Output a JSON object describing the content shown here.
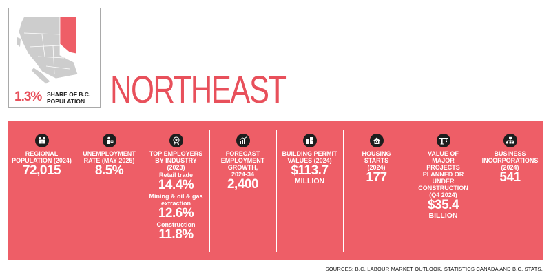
{
  "header": {
    "share_value": "1.3%",
    "share_label": "SHARE OF B.C. POPULATION",
    "region_title": "NORTHEAST",
    "highlight_color": "#e8505b"
  },
  "band": {
    "background": "#ee5e67",
    "regional_population": {
      "icon": "family-icon",
      "label": "REGIONAL POPULATION (2024)",
      "value": "72,015"
    },
    "unemployment": {
      "icon": "job-seeker-icon",
      "label": "UNEMPLOYMENT RATE (MAY 2025)",
      "value": "8.5%"
    },
    "top_employers": {
      "icon": "award-badge-icon",
      "label": "TOP EMPLOYERS BY INDUSTRY (2023)",
      "items": [
        {
          "name": "Retail trade",
          "value": "14.4%"
        },
        {
          "name": "Mining & oil & gas extraction",
          "value": "12.6%"
        },
        {
          "name": "Construction",
          "value": "11.8%"
        }
      ]
    },
    "employment_growth": {
      "icon": "growth-chart-icon",
      "label": "FORECAST EMPLOYMENT GROWTH, 2024-34",
      "value": "2,400"
    },
    "building_permits": {
      "icon": "buildings-icon",
      "label": "BUILDING PERMIT VALUES (2024)",
      "value": "$113.7",
      "unit": "MILLION"
    },
    "housing_starts": {
      "icon": "house-search-icon",
      "label": "HOUSING STARTS (2024)",
      "value": "177"
    },
    "major_projects": {
      "icon": "crane-icon",
      "label": "VALUE OF MAJOR PROJECTS PLANNED OR UNDER CONSTRUCTION (Q4 2024)",
      "value": "$35.4",
      "unit": "BILLION"
    },
    "business_incorporations": {
      "icon": "org-chart-icon",
      "label": "BUSINESS INCORPORATIONS (2024)",
      "value": "541"
    }
  },
  "sources": "SOURCES: B.C. LABOUR MARKET OUTLOOK, STATISTICS CANADA AND B.C. STATS."
}
